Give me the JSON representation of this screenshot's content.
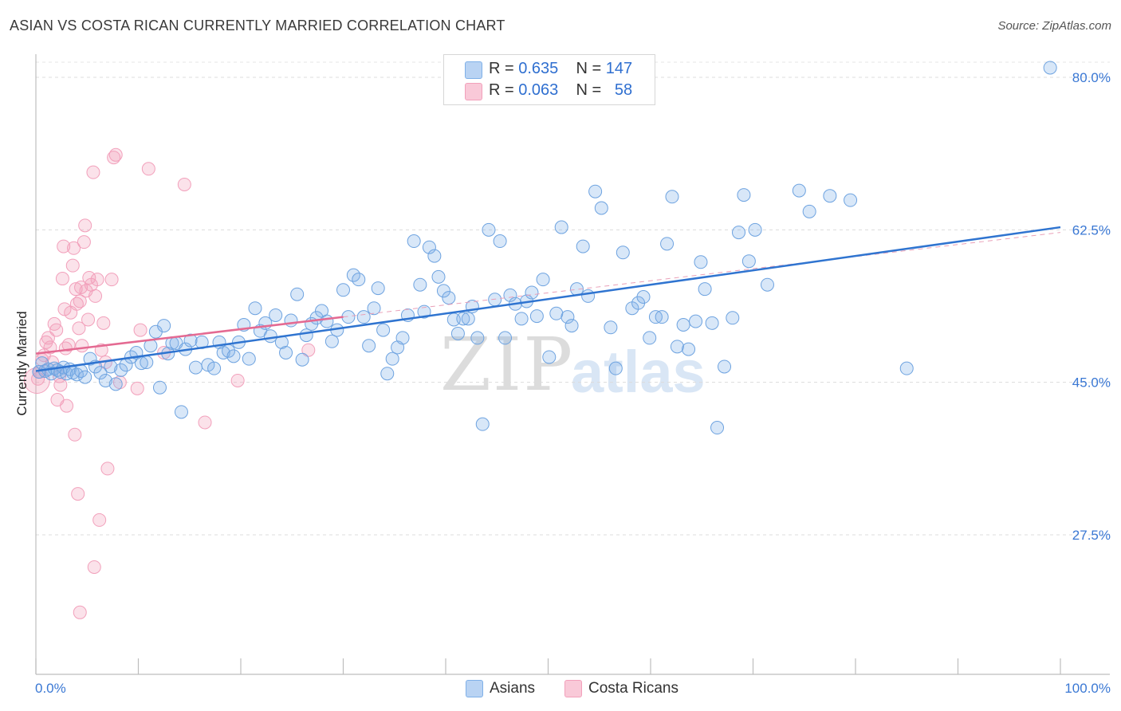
{
  "header": {
    "title": "ASIAN VS COSTA RICAN CURRENTLY MARRIED CORRELATION CHART",
    "source": "Source: ZipAtlas.com"
  },
  "legend": {
    "asian": {
      "r_label": "R =",
      "r_value": "0.635",
      "n_label": "N =",
      "n_value": "147",
      "color": "#7fb0e8"
    },
    "costa": {
      "r_label": "R =",
      "r_value": "0.063",
      "n_label": "N =",
      "n_value": "58",
      "color": "#f2a0bb"
    }
  },
  "bottom_legend": {
    "asian": "Asians",
    "costa": "Costa Ricans"
  },
  "watermark": {
    "zip": "ZIP",
    "atlas": "atlas"
  },
  "chart_data": {
    "type": "scatter",
    "title": "ASIAN VS COSTA RICAN CURRENTLY MARRIED CORRELATION CHART",
    "xlabel": "",
    "ylabel": "Currently Married",
    "xlim": [
      0,
      100
    ],
    "ylim": [
      10,
      83
    ],
    "x_tick_labels": [
      "0.0%",
      "100.0%"
    ],
    "y_ticks": [
      27.5,
      45.0,
      62.5,
      80.0
    ],
    "y_tick_labels": [
      "27.5%",
      "45.0%",
      "62.5%",
      "80.0%"
    ],
    "grid": true,
    "series": [
      {
        "name": "Asians",
        "color": "#7fb0e8",
        "line_color": "#2f74d0",
        "trend": {
          "x0": 0,
          "y0": 46.3,
          "x1": 100,
          "y1": 62.8
        },
        "points": [
          [
            0.3,
            46.2
          ],
          [
            0.6,
            47.2
          ],
          [
            0.9,
            46.3
          ],
          [
            1.2,
            46.5
          ],
          [
            1.5,
            46.0
          ],
          [
            1.8,
            46.6
          ],
          [
            2.1,
            46.4
          ],
          [
            2.4,
            46.2
          ],
          [
            2.7,
            46.7
          ],
          [
            3.0,
            46.0
          ],
          [
            3.3,
            46.5
          ],
          [
            3.6,
            46.1
          ],
          [
            4.0,
            45.9
          ],
          [
            4.4,
            46.3
          ],
          [
            4.8,
            45.6
          ],
          [
            5.3,
            47.7
          ],
          [
            5.8,
            46.8
          ],
          [
            6.3,
            46.1
          ],
          [
            6.8,
            45.2
          ],
          [
            7.3,
            46.8
          ],
          [
            7.8,
            44.8
          ],
          [
            8.3,
            46.4
          ],
          [
            8.8,
            47.0
          ],
          [
            9.3,
            47.9
          ],
          [
            9.8,
            48.4
          ],
          [
            10.3,
            47.2
          ],
          [
            10.8,
            47.3
          ],
          [
            11.2,
            49.2
          ],
          [
            11.7,
            50.8
          ],
          [
            12.1,
            44.4
          ],
          [
            12.5,
            51.5
          ],
          [
            12.9,
            48.3
          ],
          [
            13.3,
            49.5
          ],
          [
            13.7,
            49.5
          ],
          [
            14.2,
            41.6
          ],
          [
            14.6,
            48.8
          ],
          [
            15.1,
            49.8
          ],
          [
            15.6,
            46.7
          ],
          [
            16.2,
            49.6
          ],
          [
            16.8,
            47.0
          ],
          [
            17.4,
            46.6
          ],
          [
            17.9,
            49.6
          ],
          [
            18.3,
            48.4
          ],
          [
            18.8,
            48.6
          ],
          [
            19.3,
            48.0
          ],
          [
            19.8,
            49.6
          ],
          [
            20.3,
            51.6
          ],
          [
            20.8,
            47.7
          ],
          [
            21.4,
            53.5
          ],
          [
            21.9,
            50.9
          ],
          [
            22.4,
            51.8
          ],
          [
            22.9,
            50.3
          ],
          [
            23.4,
            52.7
          ],
          [
            24.0,
            49.6
          ],
          [
            24.4,
            48.4
          ],
          [
            24.9,
            52.1
          ],
          [
            25.5,
            55.1
          ],
          [
            26.0,
            47.6
          ],
          [
            26.4,
            50.4
          ],
          [
            26.9,
            51.7
          ],
          [
            27.4,
            52.4
          ],
          [
            27.9,
            53.2
          ],
          [
            28.4,
            52.0
          ],
          [
            28.9,
            49.7
          ],
          [
            29.4,
            51.0
          ],
          [
            30.0,
            55.6
          ],
          [
            30.5,
            52.5
          ],
          [
            31.0,
            57.3
          ],
          [
            31.5,
            56.8
          ],
          [
            32.0,
            52.5
          ],
          [
            32.5,
            49.2
          ],
          [
            33.0,
            53.5
          ],
          [
            33.4,
            55.8
          ],
          [
            33.9,
            51.0
          ],
          [
            34.3,
            46.0
          ],
          [
            34.8,
            47.7
          ],
          [
            35.3,
            49.0
          ],
          [
            35.8,
            50.1
          ],
          [
            36.3,
            52.7
          ],
          [
            36.9,
            61.2
          ],
          [
            37.5,
            56.2
          ],
          [
            37.9,
            53.1
          ],
          [
            38.4,
            60.5
          ],
          [
            38.9,
            59.5
          ],
          [
            39.3,
            57.1
          ],
          [
            39.8,
            55.5
          ],
          [
            40.3,
            54.7
          ],
          [
            40.8,
            52.2
          ],
          [
            41.2,
            50.6
          ],
          [
            41.7,
            52.3
          ],
          [
            42.2,
            52.3
          ],
          [
            42.6,
            53.7
          ],
          [
            43.1,
            50.1
          ],
          [
            43.6,
            40.2
          ],
          [
            44.2,
            62.5
          ],
          [
            44.8,
            54.5
          ],
          [
            45.3,
            61.2
          ],
          [
            45.8,
            50.1
          ],
          [
            46.3,
            55.0
          ],
          [
            46.8,
            54.0
          ],
          [
            47.4,
            52.3
          ],
          [
            47.9,
            54.3
          ],
          [
            48.4,
            55.3
          ],
          [
            48.9,
            52.6
          ],
          [
            49.5,
            56.8
          ],
          [
            50.1,
            47.9
          ],
          [
            50.8,
            52.9
          ],
          [
            51.3,
            62.8
          ],
          [
            51.9,
            52.5
          ],
          [
            52.3,
            51.5
          ],
          [
            52.8,
            55.7
          ],
          [
            53.4,
            60.6
          ],
          [
            53.9,
            54.9
          ],
          [
            54.6,
            66.9
          ],
          [
            55.2,
            65.0
          ],
          [
            56.1,
            51.3
          ],
          [
            56.6,
            46.6
          ],
          [
            57.3,
            59.9
          ],
          [
            58.2,
            53.5
          ],
          [
            58.8,
            54.1
          ],
          [
            59.3,
            54.8
          ],
          [
            59.9,
            50.1
          ],
          [
            60.5,
            52.5
          ],
          [
            61.1,
            52.5
          ],
          [
            61.6,
            60.9
          ],
          [
            62.1,
            66.3
          ],
          [
            62.6,
            49.1
          ],
          [
            63.2,
            51.6
          ],
          [
            63.7,
            48.8
          ],
          [
            64.4,
            52.0
          ],
          [
            64.9,
            58.8
          ],
          [
            65.3,
            55.7
          ],
          [
            66.0,
            51.8
          ],
          [
            66.5,
            39.8
          ],
          [
            67.2,
            46.8
          ],
          [
            68.0,
            52.4
          ],
          [
            68.6,
            62.2
          ],
          [
            69.1,
            66.5
          ],
          [
            69.6,
            58.9
          ],
          [
            70.2,
            62.5
          ],
          [
            71.4,
            56.2
          ],
          [
            74.5,
            67.0
          ],
          [
            75.5,
            64.6
          ],
          [
            77.5,
            66.4
          ],
          [
            79.5,
            65.9
          ],
          [
            85.0,
            46.6
          ],
          [
            99.0,
            81.1
          ]
        ]
      },
      {
        "name": "Costa Ricans",
        "color": "#f2a0bb",
        "line_color": "#e46a92",
        "trend": {
          "x0": 0,
          "y0": 48.3,
          "x1": 30,
          "y1": 52.5
        },
        "dashed_extension": {
          "x0": 30,
          "y0": 52.5,
          "x1": 100,
          "y1": 62.2
        },
        "points": [
          [
            0.2,
            45.4
          ],
          [
            0.4,
            46.2
          ],
          [
            0.6,
            47.6
          ],
          [
            0.8,
            48.1
          ],
          [
            1.0,
            49.6
          ],
          [
            1.2,
            50.1
          ],
          [
            1.4,
            49.0
          ],
          [
            1.6,
            47.3
          ],
          [
            1.8,
            51.7
          ],
          [
            2.0,
            51.0
          ],
          [
            2.1,
            43.0
          ],
          [
            2.3,
            45.7
          ],
          [
            2.4,
            44.7
          ],
          [
            2.6,
            56.9
          ],
          [
            2.7,
            60.6
          ],
          [
            2.8,
            53.4
          ],
          [
            2.9,
            48.9
          ],
          [
            3.0,
            42.3
          ],
          [
            3.2,
            49.3
          ],
          [
            3.4,
            53.0
          ],
          [
            3.6,
            58.4
          ],
          [
            3.7,
            60.4
          ],
          [
            3.8,
            39.0
          ],
          [
            3.9,
            55.7
          ],
          [
            4.0,
            54.0
          ],
          [
            4.2,
            51.2
          ],
          [
            4.3,
            54.3
          ],
          [
            4.4,
            55.9
          ],
          [
            4.5,
            49.2
          ],
          [
            4.7,
            61.1
          ],
          [
            4.8,
            63.0
          ],
          [
            4.9,
            55.5
          ],
          [
            5.1,
            52.2
          ],
          [
            5.2,
            57.0
          ],
          [
            5.4,
            56.2
          ],
          [
            5.6,
            69.1
          ],
          [
            5.8,
            54.9
          ],
          [
            6.0,
            56.8
          ],
          [
            6.2,
            29.2
          ],
          [
            6.4,
            48.7
          ],
          [
            6.6,
            51.8
          ],
          [
            6.8,
            47.3
          ],
          [
            7.0,
            35.1
          ],
          [
            7.4,
            56.8
          ],
          [
            7.6,
            70.8
          ],
          [
            7.8,
            71.1
          ],
          [
            8.2,
            45.0
          ],
          [
            9.9,
            44.3
          ],
          [
            10.2,
            51.0
          ],
          [
            11.0,
            69.5
          ],
          [
            12.5,
            48.4
          ],
          [
            14.5,
            67.7
          ],
          [
            16.5,
            40.4
          ],
          [
            26.6,
            48.7
          ],
          [
            19.7,
            45.2
          ],
          [
            4.1,
            32.2
          ],
          [
            5.7,
            23.8
          ],
          [
            4.3,
            18.6
          ]
        ]
      }
    ]
  }
}
